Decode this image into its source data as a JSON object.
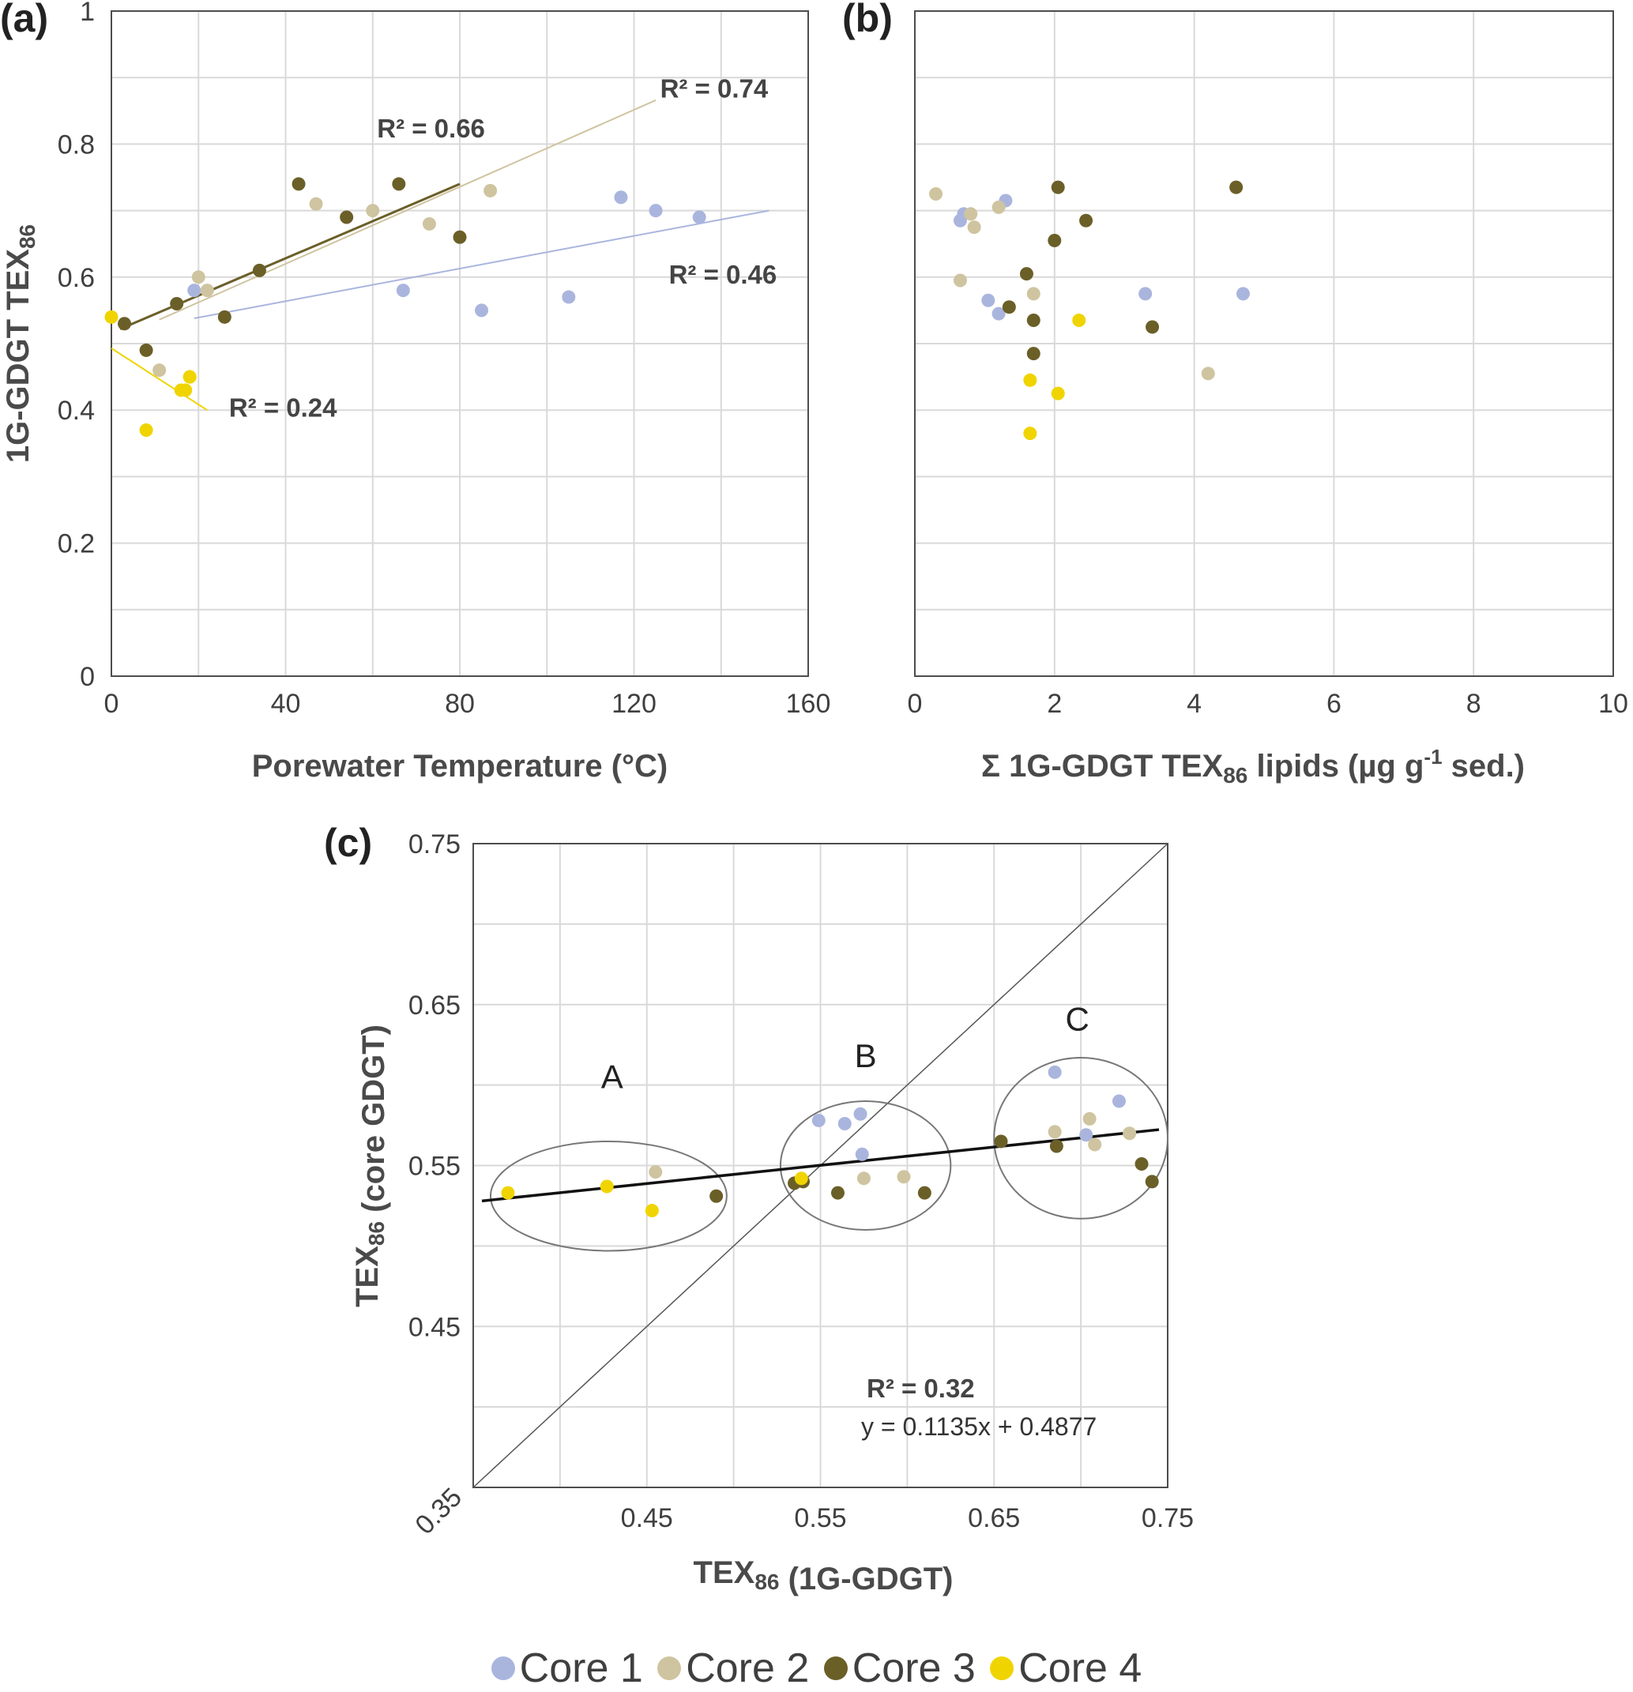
{
  "colors": {
    "core1": "#aab5de",
    "core2": "#cfc4a0",
    "core3": "#6b5f28",
    "core4": "#f0d400",
    "grid": "#d9d9d9",
    "frame": "#4d4d4d"
  },
  "labels": {
    "a": "(a)",
    "b": "(b)",
    "c": "(c)"
  },
  "legend": [
    {
      "name": "Core 1",
      "color": "#aab5de"
    },
    {
      "name": "Core 2",
      "color": "#cfc4a0"
    },
    {
      "name": "Core 3",
      "color": "#6b5f28"
    },
    {
      "name": "Core 4",
      "color": "#f0d400"
    }
  ],
  "chart_data": [
    {
      "id": "a",
      "type": "scatter",
      "xlabel": "Porewater Temperature (°C)",
      "ylabel": "1G-GDGT TEX86",
      "xlim": [
        0,
        160
      ],
      "ylim": [
        0,
        1
      ],
      "xticks": [
        0,
        40,
        80,
        120,
        160
      ],
      "yticks": [
        0,
        0.2,
        0.4,
        0.6,
        0.8,
        1
      ],
      "ytick_labels": [
        "0",
        "0.2",
        "0.4",
        "0.6",
        "0.8",
        "1"
      ],
      "grid": true,
      "series": [
        {
          "name": "Core 1",
          "x": [
            19,
            67,
            85,
            105,
            117,
            125,
            135
          ],
          "y": [
            0.58,
            0.58,
            0.55,
            0.57,
            0.72,
            0.7,
            0.69
          ]
        },
        {
          "name": "Core 2",
          "x": [
            11,
            20,
            22,
            47,
            60,
            73,
            87
          ],
          "y": [
            0.46,
            0.6,
            0.58,
            0.71,
            0.7,
            0.68,
            0.73
          ]
        },
        {
          "name": "Core 3",
          "x": [
            3,
            8,
            15,
            26,
            34,
            43,
            54,
            66,
            80
          ],
          "y": [
            0.53,
            0.49,
            0.56,
            0.54,
            0.61,
            0.74,
            0.69,
            0.74,
            0.66
          ]
        },
        {
          "name": "Core 4",
          "x": [
            0,
            8,
            16,
            17,
            18,
            18
          ],
          "y": [
            0.54,
            0.37,
            0.43,
            0.43,
            0.45,
            0.45
          ]
        }
      ],
      "trendlines": [
        {
          "series": "Core 1",
          "x": [
            19,
            151
          ],
          "y": [
            0.538,
            0.7
          ]
        },
        {
          "series": "Core 2",
          "x": [
            11,
            125
          ],
          "y": [
            0.536,
            0.866
          ]
        },
        {
          "series": "Core 3",
          "x": [
            2,
            80
          ],
          "y": [
            0.522,
            0.74
          ]
        },
        {
          "series": "Core 4",
          "x": [
            0,
            22
          ],
          "y": [
            0.493,
            0.4
          ]
        }
      ],
      "annotations": [
        {
          "text": "R² = 0.74",
          "x": 126,
          "y": 0.87
        },
        {
          "text": "R² = 0.66",
          "x": 61,
          "y": 0.81
        },
        {
          "text": "R² = 0.46",
          "x": 128,
          "y": 0.59
        },
        {
          "text": "R² = 0.24",
          "x": 27,
          "y": 0.39
        }
      ]
    },
    {
      "id": "b",
      "type": "scatter",
      "xlabel": "Σ 1G-GDGT TEX86 lipids (µg g-1 sed.)",
      "xlim": [
        0,
        10
      ],
      "ylim": [
        0,
        1
      ],
      "xticks": [
        0,
        2,
        4,
        6,
        8,
        10
      ],
      "grid": true,
      "series": [
        {
          "name": "Core 1",
          "x": [
            0.65,
            0.7,
            1.05,
            1.2,
            1.3,
            3.3,
            4.7
          ],
          "y": [
            0.685,
            0.695,
            0.565,
            0.545,
            0.715,
            0.575,
            0.575
          ]
        },
        {
          "name": "Core 2",
          "x": [
            0.3,
            0.65,
            0.8,
            0.85,
            1.2,
            1.7,
            4.2
          ],
          "y": [
            0.725,
            0.595,
            0.695,
            0.675,
            0.705,
            0.575,
            0.455
          ]
        },
        {
          "name": "Core 3",
          "x": [
            1.35,
            1.6,
            1.7,
            1.7,
            2.0,
            2.05,
            2.45,
            3.4,
            4.6
          ],
          "y": [
            0.555,
            0.605,
            0.535,
            0.485,
            0.655,
            0.735,
            0.685,
            0.525,
            0.735
          ]
        },
        {
          "name": "Core 4",
          "x": [
            1.65,
            1.65,
            2.05,
            2.35
          ],
          "y": [
            0.445,
            0.365,
            0.425,
            0.535
          ]
        }
      ]
    },
    {
      "id": "c",
      "type": "scatter",
      "xlabel": "TEX86 (1G-GDGT)",
      "ylabel": "TEX86 (core GDGT)",
      "xlim": [
        0.35,
        0.75
      ],
      "ylim": [
        0.35,
        0.75
      ],
      "xtick_labels": [
        "0.35",
        "0.45",
        "0.55",
        "0.65",
        "0.75"
      ],
      "ytick_labels": [
        "0.45",
        "0.55",
        "0.65",
        "0.75"
      ],
      "grid": true,
      "series": [
        {
          "name": "Core 1",
          "x": [
            0.549,
            0.564,
            0.573,
            0.574,
            0.685,
            0.703,
            0.722
          ],
          "y": [
            0.578,
            0.576,
            0.582,
            0.557,
            0.608,
            0.569,
            0.59
          ]
        },
        {
          "name": "Core 2",
          "x": [
            0.455,
            0.575,
            0.598,
            0.685,
            0.705,
            0.708,
            0.728
          ],
          "y": [
            0.546,
            0.542,
            0.543,
            0.571,
            0.579,
            0.563,
            0.57
          ]
        },
        {
          "name": "Core 3",
          "x": [
            0.49,
            0.535,
            0.54,
            0.56,
            0.61,
            0.654,
            0.686,
            0.735,
            0.741
          ],
          "y": [
            0.531,
            0.539,
            0.54,
            0.533,
            0.533,
            0.565,
            0.562,
            0.551,
            0.54
          ]
        },
        {
          "name": "Core 4",
          "x": [
            0.37,
            0.427,
            0.453,
            0.539
          ],
          "y": [
            0.533,
            0.537,
            0.522,
            0.542
          ]
        }
      ],
      "trendline": {
        "x": [
          0.355,
          0.745
        ],
        "y": [
          0.528,
          0.5723
        ]
      },
      "one_to_one": true,
      "groups": [
        {
          "label": "A",
          "cx": 0.428,
          "cy": 0.531,
          "rx": 0.068,
          "ry": 0.034
        },
        {
          "label": "B",
          "cx": 0.576,
          "cy": 0.55,
          "rx": 0.049,
          "ry": 0.04
        },
        {
          "label": "C",
          "cx": 0.7,
          "cy": 0.567,
          "rx": 0.05,
          "ry": 0.05
        }
      ],
      "group_label_pos": [
        {
          "label": "A",
          "x": 0.43,
          "y": 0.598
        },
        {
          "label": "B",
          "x": 0.576,
          "y": 0.611
        },
        {
          "label": "C",
          "x": 0.698,
          "y": 0.634
        }
      ],
      "r2_label": "R² = 0.32",
      "equation": "y = 0.1135x + 0.4877"
    }
  ]
}
